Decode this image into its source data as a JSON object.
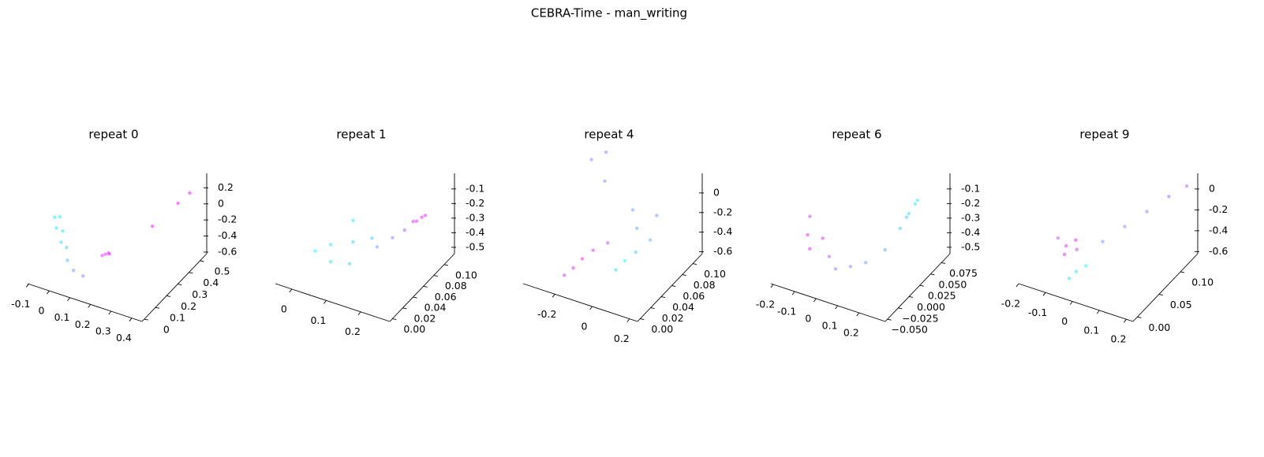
{
  "title": "CEBRA-Time - man_writing",
  "chart_data": [
    {
      "type": "scatter3d",
      "title": "repeat 0",
      "colormap": [
        "#00ffff",
        "#ff00ff"
      ],
      "xlim": [
        -0.105,
        0.45
      ],
      "xticks": [
        -0.1,
        0.0,
        0.1,
        0.2,
        0.3,
        0.4
      ],
      "ylim": [
        -0.02,
        0.56
      ],
      "yticks": [
        0.0,
        0.1,
        0.2,
        0.3,
        0.4,
        0.5
      ],
      "zlim": [
        -0.62,
        0.38
      ],
      "zticks": [
        0.2,
        0.0,
        -0.2,
        -0.4,
        -0.6
      ],
      "x": [
        -0.05,
        -0.02,
        0.0,
        -0.04,
        0.02,
        0.03,
        0.05,
        0.08,
        0.12,
        0.18,
        0.19,
        0.17,
        0.2,
        0.3,
        0.37,
        0.4
      ],
      "y": [
        0.12,
        0.08,
        0.1,
        0.15,
        0.05,
        0.08,
        0.05,
        0.05,
        0.06,
        0.15,
        0.16,
        0.14,
        0.15,
        0.35,
        0.45,
        0.5
      ],
      "z": [
        0.05,
        0.0,
        -0.05,
        0.02,
        -0.1,
        -0.2,
        -0.3,
        -0.4,
        -0.45,
        -0.26,
        -0.25,
        -0.27,
        -0.24,
        -0.1,
        0.1,
        0.18
      ],
      "c": [
        0.05,
        0.1,
        0.12,
        0.08,
        0.15,
        0.2,
        0.3,
        0.45,
        0.55,
        0.85,
        0.9,
        0.88,
        0.92,
        0.95,
        0.98,
        1.0
      ]
    },
    {
      "type": "scatter3d",
      "title": "repeat 1",
      "colormap": [
        "#00ffff",
        "#ff00ff"
      ],
      "xlim": [
        -0.048,
        0.285
      ],
      "xticks": [
        0.0,
        0.1,
        0.2
      ],
      "ylim": [
        -0.005,
        0.12
      ],
      "yticks": [
        {
          "value": 0.0,
          "label": "0.00"
        },
        {
          "value": 0.02,
          "label": "0.02"
        },
        {
          "value": 0.04,
          "label": "0.04"
        },
        {
          "value": 0.06,
          "label": "0.06"
        },
        {
          "value": 0.08,
          "label": "0.08"
        },
        {
          "value": 0.1,
          "label": "0.10"
        }
      ],
      "zlim": [
        -0.544,
        0.007
      ],
      "zticks": [
        -0.1,
        -0.2,
        -0.3,
        -0.4,
        -0.5
      ],
      "x": [
        0.0,
        0.03,
        0.06,
        0.08,
        0.1,
        0.12,
        0.05,
        0.15,
        0.18,
        0.2,
        0.21,
        0.22,
        0.23,
        0.22
      ],
      "y": [
        0.04,
        0.05,
        0.03,
        0.06,
        0.04,
        0.07,
        0.08,
        0.06,
        0.07,
        0.08,
        0.09,
        0.09,
        0.1,
        0.1
      ],
      "z": [
        -0.45,
        -0.42,
        -0.44,
        -0.4,
        -0.46,
        -0.38,
        -0.35,
        -0.38,
        -0.33,
        -0.3,
        -0.27,
        -0.26,
        -0.25,
        -0.27
      ],
      "c": [
        0.05,
        0.1,
        0.12,
        0.15,
        0.2,
        0.25,
        0.08,
        0.4,
        0.55,
        0.7,
        0.85,
        0.9,
        0.95,
        0.92
      ]
    },
    {
      "type": "scatter3d",
      "title": "repeat 4",
      "colormap": [
        "#00ffff",
        "#ff00ff"
      ],
      "xlim": [
        -0.37,
        0.243
      ],
      "xticks": [
        -0.2,
        0.0,
        0.2
      ],
      "ylim": [
        -0.005,
        0.118
      ],
      "yticks": [
        {
          "value": 0.0,
          "label": "0.00"
        },
        {
          "value": 0.02,
          "label": "0.02"
        },
        {
          "value": 0.04,
          "label": "0.04"
        },
        {
          "value": 0.06,
          "label": "0.06"
        },
        {
          "value": 0.08,
          "label": "0.08"
        },
        {
          "value": 0.1,
          "label": "0.10"
        }
      ],
      "zlim": [
        -0.62,
        0.2
      ],
      "zticks": [
        0.0,
        -0.2,
        -0.4,
        -0.6
      ],
      "x": [
        -0.2,
        -0.18,
        -0.15,
        -0.22,
        -0.1,
        0.0,
        0.02,
        0.05,
        0.0,
        -0.05,
        0.05,
        -0.3,
        -0.25,
        -0.2,
        0.1
      ],
      "y": [
        0.03,
        0.04,
        0.05,
        0.02,
        0.06,
        0.04,
        0.05,
        0.06,
        0.08,
        0.09,
        0.1,
        0.1,
        0.11,
        0.09,
        0.07
      ],
      "z": [
        -0.55,
        -0.5,
        -0.45,
        -0.58,
        -0.4,
        -0.5,
        -0.45,
        -0.4,
        -0.3,
        -0.2,
        -0.25,
        0.1,
        0.15,
        0.0,
        -0.3
      ],
      "c": [
        0.9,
        0.95,
        0.85,
        0.8,
        0.75,
        0.1,
        0.05,
        0.2,
        0.35,
        0.4,
        0.45,
        0.5,
        0.55,
        0.45,
        0.3
      ]
    },
    {
      "type": "scatter3d",
      "title": "repeat 6",
      "colormap": [
        "#00ffff",
        "#ff00ff"
      ],
      "xlim": [
        -0.211,
        0.322
      ],
      "xticks": [
        -0.2,
        -0.1,
        0.0,
        0.1,
        0.2
      ],
      "ylim": [
        -0.055,
        0.095
      ],
      "yticks": [
        {
          "value": -0.05,
          "label": "−0.050"
        },
        {
          "value": -0.025,
          "label": "−0.025"
        },
        {
          "value": 0.0,
          "label": "0.000"
        },
        {
          "value": 0.025,
          "label": "0.025"
        },
        {
          "value": 0.05,
          "label": "0.050"
        },
        {
          "value": 0.075,
          "label": "0.075"
        }
      ],
      "zlim": [
        -0.544,
        0.007
      ],
      "zticks": [
        -0.1,
        -0.2,
        -0.3,
        -0.4,
        -0.5
      ],
      "x": [
        -0.15,
        -0.12,
        -0.1,
        -0.05,
        0.0,
        0.05,
        0.1,
        0.15,
        0.18,
        0.2,
        0.21,
        0.22,
        -0.18,
        0.19
      ],
      "y": [
        0.0,
        -0.01,
        0.01,
        0.0,
        -0.01,
        0.0,
        0.01,
        0.03,
        0.05,
        0.06,
        0.07,
        0.07,
        0.02,
        0.06
      ],
      "z": [
        -0.35,
        -0.4,
        -0.38,
        -0.45,
        -0.48,
        -0.47,
        -0.45,
        -0.4,
        -0.3,
        -0.22,
        -0.18,
        -0.15,
        -0.3,
        -0.25
      ],
      "c": [
        0.9,
        0.95,
        0.85,
        0.7,
        0.55,
        0.5,
        0.4,
        0.35,
        0.25,
        0.15,
        0.1,
        0.05,
        0.8,
        0.2
      ]
    },
    {
      "type": "scatter3d",
      "title": "repeat 9",
      "colormap": [
        "#00ffff",
        "#ff00ff"
      ],
      "xlim": [
        -0.2,
        0.225
      ],
      "xticks": [
        -0.2,
        -0.1,
        0.0,
        0.1,
        0.2
      ],
      "ylim": [
        -0.01,
        0.14
      ],
      "yticks": [
        {
          "value": 0.0,
          "label": "0.00"
        },
        {
          "value": 0.05,
          "label": "0.05"
        },
        {
          "value": 0.1,
          "label": "0.10"
        }
      ],
      "zlim": [
        -0.62,
        0.15
      ],
      "zticks": [
        0.0,
        -0.2,
        -0.4,
        -0.6
      ],
      "x": [
        -0.12,
        -0.1,
        -0.11,
        -0.08,
        -0.05,
        -0.03,
        -0.06,
        0.0,
        0.05,
        0.1,
        0.15,
        0.2,
        -0.15
      ],
      "y": [
        0.05,
        0.06,
        0.04,
        0.05,
        0.03,
        0.04,
        0.02,
        0.06,
        0.08,
        0.1,
        0.12,
        0.13,
        0.05
      ],
      "z": [
        -0.45,
        -0.42,
        -0.48,
        -0.45,
        -0.55,
        -0.52,
        -0.58,
        -0.35,
        -0.25,
        -0.15,
        -0.05,
        0.05,
        -0.4
      ],
      "c": [
        0.9,
        0.95,
        0.85,
        0.8,
        0.1,
        0.05,
        0.15,
        0.45,
        0.5,
        0.55,
        0.6,
        0.65,
        0.7
      ]
    }
  ]
}
